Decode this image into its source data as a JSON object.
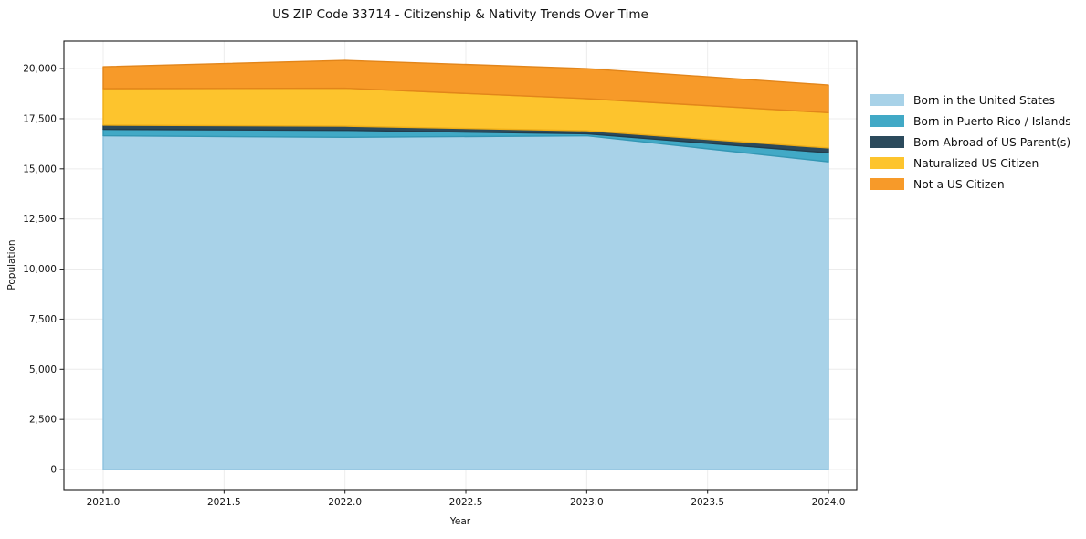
{
  "figure": {
    "title": "US ZIP Code 33714 - Citizenship & Nativity Trends Over Time",
    "background_color": "#ffffff",
    "grid_color": "#ececec",
    "frame_color": "#1a1a1a"
  },
  "chart_data": {
    "type": "area",
    "stacked": true,
    "title": "US ZIP Code 33714 - Citizenship & Nativity Trends Over Time",
    "xlabel": "Year",
    "ylabel": "Population",
    "x": [
      2021,
      2022,
      2023,
      2024
    ],
    "series": [
      {
        "name": "Born in the United States",
        "color": "#a8d2e8",
        "edge": "#8ec2de",
        "values": [
          16650,
          16570,
          16650,
          15350
        ]
      },
      {
        "name": "Born in Puerto Rico / Islands",
        "color": "#41a9c6",
        "edge": "#3397b4",
        "values": [
          320,
          350,
          100,
          450
        ]
      },
      {
        "name": "Born Abroad of US Parent(s)",
        "color": "#2b4a5c",
        "edge": "#223c4b",
        "values": [
          210,
          210,
          150,
          240
        ]
      },
      {
        "name": "Naturalized US Citizen",
        "color": "#fdc42d",
        "edge": "#eead17",
        "values": [
          1820,
          1890,
          1600,
          1760
        ]
      },
      {
        "name": "Not a US Citizen",
        "color": "#f79a29",
        "edge": "#e2851a",
        "values": [
          1090,
          1390,
          1500,
          1380
        ]
      }
    ],
    "totals_by_year": [
      20090,
      20410,
      20000,
      19180
    ],
    "xticks": [
      2021.0,
      2021.5,
      2022.0,
      2022.5,
      2023.0,
      2023.5,
      2024.0
    ],
    "xtick_labels": [
      "2021.0",
      "2021.5",
      "2022.0",
      "2022.5",
      "2023.0",
      "2023.5",
      "2024.0"
    ],
    "yticks": [
      0,
      2500,
      5000,
      7500,
      10000,
      12500,
      15000,
      17500,
      20000
    ],
    "ytick_labels": [
      "0",
      "2,500",
      "5,000",
      "7,500",
      "10,000",
      "12,500",
      "15,000",
      "17,500",
      "20,000"
    ],
    "x_range": [
      2020.8375,
      2024.117
    ],
    "y_range": [
      -1000,
      21370
    ],
    "grid": true,
    "legend_position": "right"
  }
}
